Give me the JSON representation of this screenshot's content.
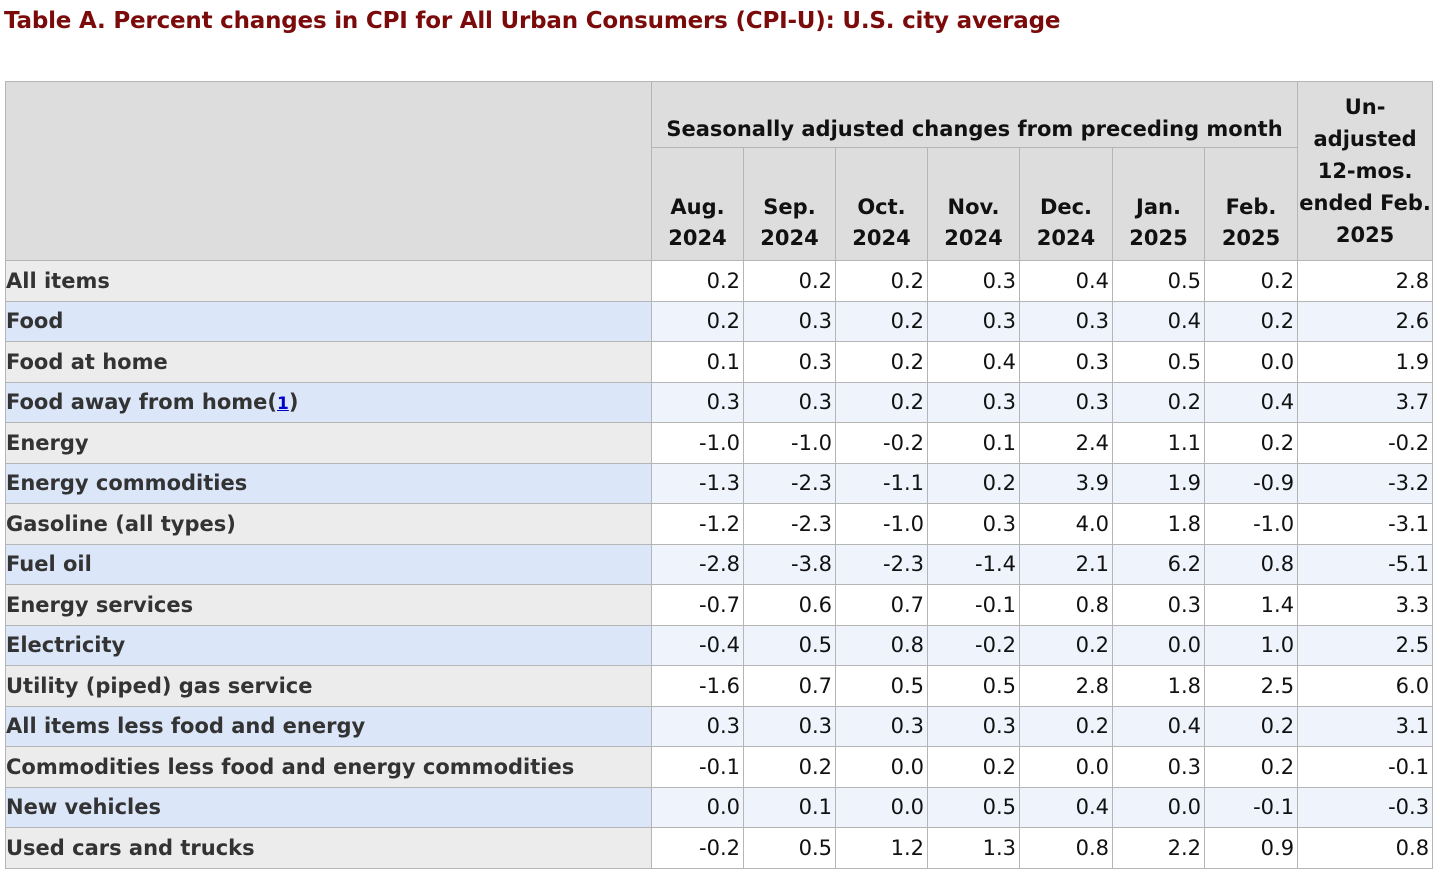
{
  "title": "Table A. Percent changes in CPI for All Urban Consumers (CPI-U): U.S. city average",
  "header": {
    "group_label": "Seasonally adjusted changes from preceding month",
    "unadjusted_label": "Un- adjusted 12-mos. ended Feb. 2025",
    "months": [
      "Aug. 2024",
      "Sep. 2024",
      "Oct. 2024",
      "Nov. 2024",
      "Dec. 2024",
      "Jan. 2025",
      "Feb. 2025"
    ]
  },
  "footnote_link": "1",
  "rows": [
    {
      "label": "All items",
      "level": 0,
      "values": [
        "0.2",
        "0.2",
        "0.2",
        "0.3",
        "0.4",
        "0.5",
        "0.2",
        "2.8"
      ]
    },
    {
      "label": "Food",
      "level": 1,
      "values": [
        "0.2",
        "0.3",
        "0.2",
        "0.3",
        "0.3",
        "0.4",
        "0.2",
        "2.6"
      ]
    },
    {
      "label": "Food at home",
      "level": 2,
      "values": [
        "0.1",
        "0.3",
        "0.2",
        "0.4",
        "0.3",
        "0.5",
        "0.0",
        "1.9"
      ]
    },
    {
      "label": "Food away from home",
      "level": 2,
      "footnote": true,
      "values": [
        "0.3",
        "0.3",
        "0.2",
        "0.3",
        "0.3",
        "0.2",
        "0.4",
        "3.7"
      ]
    },
    {
      "label": "Energy",
      "level": 1,
      "values": [
        "-1.0",
        "-1.0",
        "-0.2",
        "0.1",
        "2.4",
        "1.1",
        "0.2",
        "-0.2"
      ]
    },
    {
      "label": "Energy commodities",
      "level": 2,
      "values": [
        "-1.3",
        "-2.3",
        "-1.1",
        "0.2",
        "3.9",
        "1.9",
        "-0.9",
        "-3.2"
      ]
    },
    {
      "label": "Gasoline (all types)",
      "level": 3,
      "values": [
        "-1.2",
        "-2.3",
        "-1.0",
        "0.3",
        "4.0",
        "1.8",
        "-1.0",
        "-3.1"
      ]
    },
    {
      "label": "Fuel oil",
      "level": 3,
      "values": [
        "-2.8",
        "-3.8",
        "-2.3",
        "-1.4",
        "2.1",
        "6.2",
        "0.8",
        "-5.1"
      ]
    },
    {
      "label": "Energy services",
      "level": 2,
      "values": [
        "-0.7",
        "0.6",
        "0.7",
        "-0.1",
        "0.8",
        "0.3",
        "1.4",
        "3.3"
      ]
    },
    {
      "label": "Electricity",
      "level": 3,
      "values": [
        "-0.4",
        "0.5",
        "0.8",
        "-0.2",
        "0.2",
        "0.0",
        "1.0",
        "2.5"
      ]
    },
    {
      "label": "Utility (piped) gas service",
      "level": 3,
      "values": [
        "-1.6",
        "0.7",
        "0.5",
        "0.5",
        "2.8",
        "1.8",
        "2.5",
        "6.0"
      ]
    },
    {
      "label": "All items less food and energy",
      "level": 1,
      "values": [
        "0.3",
        "0.3",
        "0.3",
        "0.3",
        "0.2",
        "0.4",
        "0.2",
        "3.1"
      ]
    },
    {
      "label": "Commodities less food and energy commodities",
      "level": 2,
      "values": [
        "-0.1",
        "0.2",
        "0.0",
        "0.2",
        "0.0",
        "0.3",
        "0.2",
        "-0.1"
      ]
    },
    {
      "label": "New vehicles",
      "level": 3,
      "values": [
        "0.0",
        "0.1",
        "0.0",
        "0.5",
        "0.4",
        "0.0",
        "-0.1",
        "-0.3"
      ]
    },
    {
      "label": "Used cars and trucks",
      "level": 3,
      "values": [
        "-0.2",
        "0.5",
        "1.2",
        "1.3",
        "0.8",
        "2.2",
        "0.9",
        "0.8"
      ]
    }
  ]
}
